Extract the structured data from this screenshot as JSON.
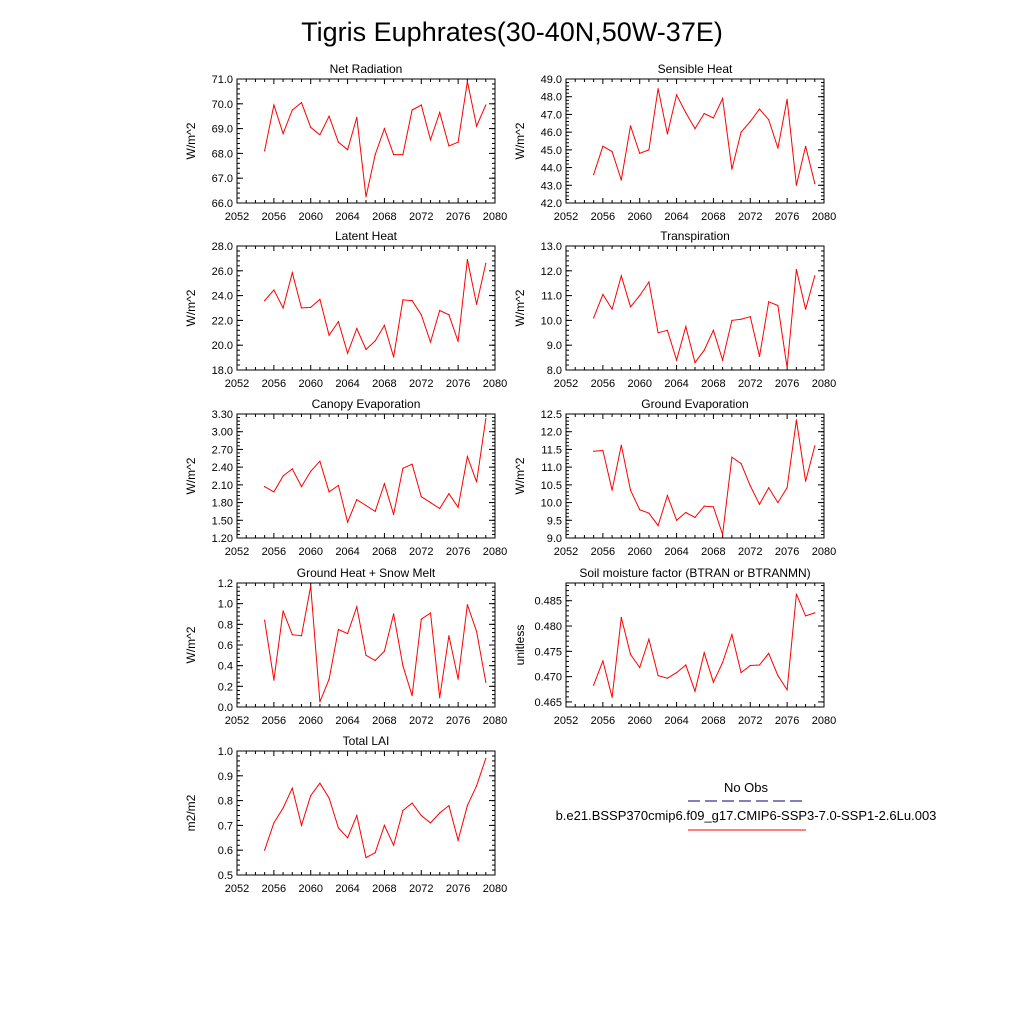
{
  "figure": {
    "title": "Tigris Euphrates(30-40N,50W-37E)"
  },
  "colors": {
    "series": "#ff0000",
    "obs": "#000080",
    "axis": "#000000"
  },
  "legend": {
    "obs_label": "No Obs",
    "case_label": "b.e21.BSSP370cmip6.f09_g17.CMIP6-SSP3-7.0-SSP1-2.6Lu.003"
  },
  "chart_data": [
    {
      "type": "line",
      "title": "Net Radiation",
      "ylabel": "W/m^2",
      "xlim": [
        2052,
        2080
      ],
      "ylim": [
        66.0,
        71.0
      ],
      "xticks": [
        2052,
        2056,
        2060,
        2064,
        2068,
        2072,
        2076,
        2080
      ],
      "yticks": [
        "66.0",
        "67.0",
        "68.0",
        "69.0",
        "70.0",
        "71.0"
      ],
      "x": [
        2055,
        2056,
        2057,
        2058,
        2059,
        2060,
        2061,
        2062,
        2063,
        2064,
        2065,
        2066,
        2067,
        2068,
        2069,
        2070,
        2071,
        2072,
        2073,
        2074,
        2075,
        2076,
        2077,
        2078,
        2079
      ],
      "values": [
        68.1,
        69.95,
        68.8,
        69.75,
        70.05,
        69.05,
        68.75,
        69.5,
        68.45,
        68.15,
        69.45,
        66.25,
        67.95,
        69.0,
        67.95,
        67.95,
        69.75,
        69.95,
        68.55,
        69.65,
        68.3,
        68.45,
        70.9,
        69.1,
        69.95
      ]
    },
    {
      "type": "line",
      "title": "Sensible Heat",
      "ylabel": "W/m^2",
      "xlim": [
        2052,
        2080
      ],
      "ylim": [
        42.0,
        49.0
      ],
      "xticks": [
        2052,
        2056,
        2060,
        2064,
        2068,
        2072,
        2076,
        2080
      ],
      "yticks": [
        "42.0",
        "43.0",
        "44.0",
        "45.0",
        "46.0",
        "47.0",
        "48.0",
        "49.0"
      ],
      "x": [
        2055,
        2056,
        2057,
        2058,
        2059,
        2060,
        2061,
        2062,
        2063,
        2064,
        2065,
        2066,
        2067,
        2068,
        2069,
        2070,
        2071,
        2072,
        2073,
        2074,
        2075,
        2076,
        2077,
        2078,
        2079
      ],
      "values": [
        43.6,
        45.2,
        44.9,
        43.3,
        46.35,
        44.8,
        45.0,
        48.45,
        45.9,
        48.1,
        47.1,
        46.2,
        47.05,
        46.8,
        47.9,
        43.9,
        46.0,
        46.6,
        47.3,
        46.7,
        45.1,
        47.85,
        43.0,
        45.2,
        43.1
      ]
    },
    {
      "type": "line",
      "title": "Latent Heat",
      "ylabel": "W/m^2",
      "xlim": [
        2052,
        2080
      ],
      "ylim": [
        18.0,
        28.0
      ],
      "xticks": [
        2052,
        2056,
        2060,
        2064,
        2068,
        2072,
        2076,
        2080
      ],
      "yticks": [
        "18.0",
        "20.0",
        "22.0",
        "24.0",
        "26.0",
        "28.0"
      ],
      "x": [
        2055,
        2056,
        2057,
        2058,
        2059,
        2060,
        2061,
        2062,
        2063,
        2064,
        2065,
        2066,
        2067,
        2068,
        2069,
        2070,
        2071,
        2072,
        2073,
        2074,
        2075,
        2076,
        2077,
        2078,
        2079
      ],
      "values": [
        23.6,
        24.45,
        23.0,
        25.85,
        23.0,
        23.05,
        23.7,
        20.8,
        21.9,
        19.35,
        21.35,
        19.65,
        20.35,
        21.6,
        19.05,
        23.65,
        23.6,
        22.45,
        20.25,
        22.8,
        22.45,
        20.3,
        26.9,
        23.3,
        26.6
      ]
    },
    {
      "type": "line",
      "title": "Transpiration",
      "ylabel": "W/m^2",
      "xlim": [
        2052,
        2080
      ],
      "ylim": [
        8.0,
        13.0
      ],
      "xticks": [
        2052,
        2056,
        2060,
        2064,
        2068,
        2072,
        2076,
        2080
      ],
      "yticks": [
        "8.0",
        "9.0",
        "10.0",
        "11.0",
        "12.0",
        "13.0"
      ],
      "x": [
        2055,
        2056,
        2057,
        2058,
        2059,
        2060,
        2061,
        2062,
        2063,
        2064,
        2065,
        2066,
        2067,
        2068,
        2069,
        2070,
        2071,
        2072,
        2073,
        2074,
        2075,
        2076,
        2077,
        2078,
        2079
      ],
      "values": [
        10.1,
        11.05,
        10.45,
        11.8,
        10.55,
        11.0,
        11.55,
        9.5,
        9.6,
        8.4,
        9.75,
        8.3,
        8.8,
        9.6,
        8.4,
        10.0,
        10.05,
        10.15,
        8.55,
        10.75,
        10.6,
        8.1,
        12.05,
        10.45,
        11.8
      ]
    },
    {
      "type": "line",
      "title": "Canopy Evaporation",
      "ylabel": "W/m^2",
      "xlim": [
        2052,
        2080
      ],
      "ylim": [
        1.2,
        3.3
      ],
      "xticks": [
        2052,
        2056,
        2060,
        2064,
        2068,
        2072,
        2076,
        2080
      ],
      "yticks": [
        "1.20",
        "1.50",
        "1.80",
        "2.10",
        "2.40",
        "2.70",
        "3.00",
        "3.30"
      ],
      "x": [
        2055,
        2056,
        2057,
        2058,
        2059,
        2060,
        2061,
        2062,
        2063,
        2064,
        2065,
        2066,
        2067,
        2068,
        2069,
        2070,
        2071,
        2072,
        2073,
        2074,
        2075,
        2076,
        2077,
        2078,
        2079
      ],
      "values": [
        2.07,
        1.98,
        2.25,
        2.37,
        2.07,
        2.33,
        2.5,
        1.98,
        2.09,
        1.47,
        1.85,
        1.75,
        1.65,
        2.12,
        1.6,
        2.38,
        2.45,
        1.9,
        1.8,
        1.7,
        1.95,
        1.72,
        2.58,
        2.15,
        3.22
      ]
    },
    {
      "type": "line",
      "title": "Ground Evaporation",
      "ylabel": "W/m^2",
      "xlim": [
        2052,
        2080
      ],
      "ylim": [
        9.0,
        12.5
      ],
      "xticks": [
        2052,
        2056,
        2060,
        2064,
        2068,
        2072,
        2076,
        2080
      ],
      "yticks": [
        "9.0",
        "9.5",
        "10.0",
        "10.5",
        "11.0",
        "11.5",
        "12.0",
        "12.5"
      ],
      "x": [
        2055,
        2056,
        2057,
        2058,
        2059,
        2060,
        2061,
        2062,
        2063,
        2064,
        2065,
        2066,
        2067,
        2068,
        2069,
        2070,
        2071,
        2072,
        2073,
        2074,
        2075,
        2076,
        2077,
        2078,
        2079
      ],
      "values": [
        11.45,
        11.47,
        10.35,
        11.62,
        10.35,
        9.8,
        9.7,
        9.35,
        10.2,
        9.5,
        9.72,
        9.58,
        9.9,
        9.88,
        9.1,
        11.28,
        11.1,
        10.47,
        9.95,
        10.42,
        10.0,
        10.42,
        12.33,
        10.6,
        11.6
      ]
    },
    {
      "type": "line",
      "title": "Ground Heat + Snow Melt",
      "ylabel": "W/m^2",
      "xlim": [
        2052,
        2080
      ],
      "ylim": [
        0.0,
        1.2
      ],
      "xticks": [
        2052,
        2056,
        2060,
        2064,
        2068,
        2072,
        2076,
        2080
      ],
      "yticks": [
        "0.0",
        "0.2",
        "0.4",
        "0.6",
        "0.8",
        "1.0",
        "1.2"
      ],
      "x": [
        2055,
        2056,
        2057,
        2058,
        2059,
        2060,
        2061,
        2062,
        2063,
        2064,
        2065,
        2066,
        2067,
        2068,
        2069,
        2070,
        2071,
        2072,
        2073,
        2074,
        2075,
        2076,
        2077,
        2078,
        2079
      ],
      "values": [
        0.84,
        0.26,
        0.93,
        0.7,
        0.69,
        1.17,
        0.05,
        0.27,
        0.75,
        0.71,
        0.97,
        0.5,
        0.45,
        0.54,
        0.9,
        0.4,
        0.11,
        0.85,
        0.91,
        0.09,
        0.69,
        0.27,
        0.99,
        0.73,
        0.24
      ]
    },
    {
      "type": "line",
      "title": "Soil moisture factor (BTRAN or BTRANMN)",
      "ylabel": "unitless",
      "xlim": [
        2052,
        2080
      ],
      "ylim": [
        0.464,
        0.4885
      ],
      "xticks": [
        2052,
        2056,
        2060,
        2064,
        2068,
        2072,
        2076,
        2080
      ],
      "yticks": [
        "0.465",
        "0.470",
        "0.475",
        "0.480",
        "0.485"
      ],
      "x": [
        2055,
        2056,
        2057,
        2058,
        2059,
        2060,
        2061,
        2062,
        2063,
        2064,
        2065,
        2066,
        2067,
        2068,
        2069,
        2070,
        2071,
        2072,
        2073,
        2074,
        2075,
        2076,
        2077,
        2078,
        2079
      ],
      "values": [
        0.4683,
        0.4731,
        0.4659,
        0.4817,
        0.4744,
        0.4718,
        0.4774,
        0.4702,
        0.4697,
        0.4708,
        0.4723,
        0.4671,
        0.4747,
        0.4689,
        0.4728,
        0.4783,
        0.4708,
        0.4722,
        0.4723,
        0.4746,
        0.4702,
        0.4674,
        0.4863,
        0.482,
        0.4826
      ]
    },
    {
      "type": "line",
      "title": "Total LAI",
      "ylabel": "m2/m2",
      "xlim": [
        2052,
        2080
      ],
      "ylim": [
        0.5,
        1.0
      ],
      "xticks": [
        2052,
        2056,
        2060,
        2064,
        2068,
        2072,
        2076,
        2080
      ],
      "yticks": [
        "0.5",
        "0.6",
        "0.7",
        "0.8",
        "0.9",
        "1.0"
      ],
      "x": [
        2055,
        2056,
        2057,
        2058,
        2059,
        2060,
        2061,
        2062,
        2063,
        2064,
        2065,
        2066,
        2067,
        2068,
        2069,
        2070,
        2071,
        2072,
        2073,
        2074,
        2075,
        2076,
        2077,
        2078,
        2079
      ],
      "values": [
        0.6,
        0.71,
        0.77,
        0.85,
        0.7,
        0.82,
        0.87,
        0.81,
        0.69,
        0.65,
        0.74,
        0.57,
        0.59,
        0.7,
        0.62,
        0.76,
        0.79,
        0.74,
        0.71,
        0.75,
        0.78,
        0.64,
        0.78,
        0.86,
        0.97
      ]
    }
  ]
}
